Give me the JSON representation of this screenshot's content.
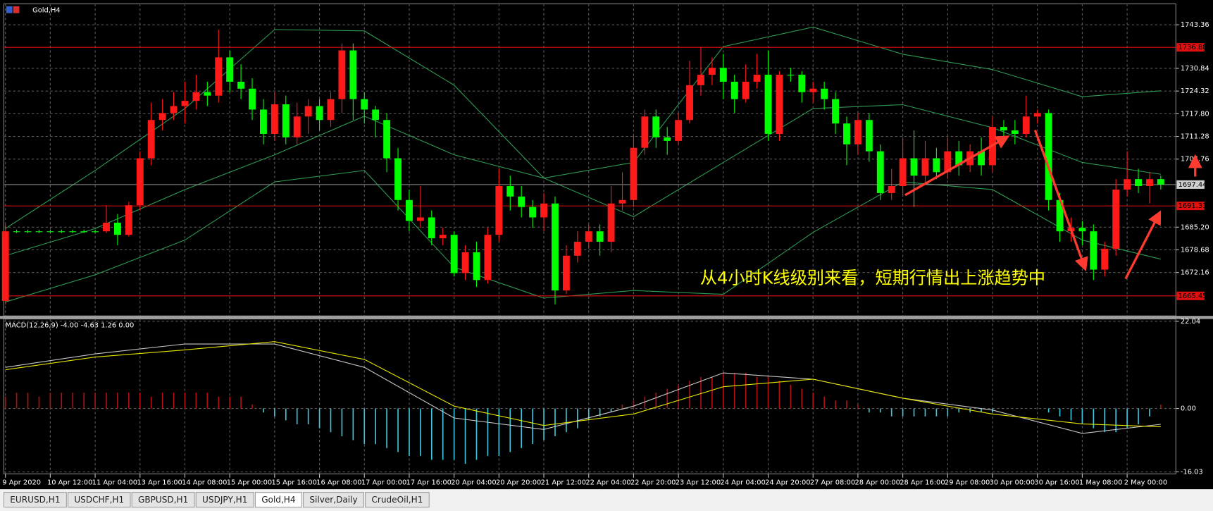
{
  "chart_data": [
    {
      "type": "candlestick",
      "title": "Gold,H4",
      "annotation": "从4小时K线级别来看，短期行情出上涨趋势中",
      "categories": [
        "9 Apr 2020",
        null,
        null,
        null,
        "10 Apr 12:00",
        null,
        null,
        null,
        "11 Apr 04:00",
        null,
        null,
        null,
        "13 Apr 16:00",
        null,
        null,
        null,
        "14 Apr 08:00",
        null,
        null,
        null,
        "15 Apr 00:00",
        null,
        null,
        null,
        "15 Apr 16:00",
        null,
        null,
        null,
        "16 Apr 08:00",
        null,
        null,
        null,
        "17 Apr 00:00",
        null,
        null,
        null,
        "17 Apr 16:00",
        null,
        null,
        null,
        "20 Apr 04:00",
        null,
        null,
        null,
        "20 Apr 20:00",
        null,
        null,
        null,
        "21 Apr 12:00",
        null,
        null,
        null,
        "22 Apr 04:00",
        null,
        null,
        null,
        "22 Apr 20:00",
        null,
        null,
        null,
        "23 Apr 12:00",
        null,
        null,
        null,
        "24 Apr 04:00",
        null,
        null,
        null,
        "24 Apr 20:00",
        null,
        null,
        null,
        "27 Apr 08:00",
        null,
        null,
        null,
        "28 Apr 00:00",
        null,
        null,
        null,
        "28 Apr 16:00",
        null,
        null,
        null,
        "29 Apr 08:00",
        null,
        null,
        null,
        "30 Apr 00:00",
        null,
        null,
        null,
        "30 Apr 16:00",
        null,
        null,
        null,
        "1 May 08:00",
        null,
        null,
        null,
        "2 May 00:00",
        null,
        null,
        null
      ],
      "open": [
        1664,
        1684,
        1684,
        1684,
        1684,
        1684,
        1684,
        1684,
        1684,
        1684,
        1686.5,
        1683,
        1691.5,
        1705,
        1716,
        1718,
        1720,
        1721.5,
        1724,
        1723,
        1734,
        1727,
        1725,
        1719,
        1712,
        1720.5,
        1711,
        1717,
        1720,
        1716,
        1722,
        1736,
        1722,
        1719,
        1716,
        1705,
        1693,
        1687,
        1688,
        1682,
        1683,
        1672,
        1678,
        1670,
        1683,
        1697,
        1694,
        1691,
        1688,
        1692,
        1667,
        1677,
        1681,
        1684,
        1681,
        1692,
        1693,
        1708,
        1717,
        1711,
        1710,
        1716,
        1726,
        1729,
        1731,
        1727,
        1722,
        1727,
        1729,
        1712,
        1729,
        1729,
        1724,
        1725,
        1722,
        1715,
        1709,
        1716,
        1707,
        1695,
        1697,
        1705,
        1700,
        1705,
        1701,
        1707,
        1703,
        1707,
        1703,
        1714,
        1713,
        1712,
        1717,
        1718,
        1693,
        1684,
        1685,
        1684,
        1673,
        1679,
        1696,
        1699,
        1697,
        1699
      ],
      "high": [
        1686,
        1684.5,
        1684.5,
        1684.5,
        1684.5,
        1684.5,
        1684.5,
        1684.5,
        1684.5,
        1691.5,
        1689,
        1692.5,
        1707,
        1721,
        1722,
        1724,
        1727,
        1729,
        1727,
        1742,
        1736,
        1732,
        1728,
        1722,
        1724,
        1723,
        1721,
        1722,
        1722,
        1724,
        1738,
        1738,
        1724,
        1720,
        1718,
        1708,
        1696,
        1697,
        1690,
        1685,
        1684,
        1680,
        1681,
        1685,
        1702,
        1700,
        1697,
        1693,
        1695,
        1694,
        1680,
        1684,
        1686,
        1686,
        1697,
        1701,
        1712,
        1719,
        1719,
        1714,
        1718,
        1733,
        1737,
        1734,
        1735,
        1729,
        1732,
        1735,
        1736,
        1730,
        1731,
        1730,
        1727,
        1727,
        1724,
        1717,
        1718,
        1718,
        1709,
        1702,
        1711,
        1713,
        1710,
        1708,
        1711,
        1710,
        1709,
        1711,
        1717,
        1716,
        1716,
        1723,
        1719,
        1719,
        1695,
        1688,
        1687,
        1686,
        1681,
        1699,
        1707,
        1702,
        1701,
        1700
      ],
      "low": [
        1663,
        1683.5,
        1683.5,
        1683.5,
        1683.5,
        1683.5,
        1683.5,
        1683.5,
        1683.5,
        1683.5,
        1680,
        1682.5,
        1690,
        1703,
        1713,
        1716,
        1715,
        1719,
        1720,
        1721,
        1724,
        1722,
        1716,
        1709,
        1710,
        1709,
        1709,
        1712,
        1713,
        1714,
        1718,
        1716,
        1715,
        1711,
        1701,
        1690,
        1684,
        1685,
        1680,
        1680,
        1671,
        1670,
        1668,
        1669,
        1681,
        1690,
        1688,
        1685,
        1684,
        1663,
        1666,
        1675,
        1679,
        1677,
        1678,
        1690,
        1691,
        1706,
        1708,
        1706,
        1709,
        1715,
        1723,
        1726,
        1722,
        1718,
        1721,
        1725,
        1710,
        1710,
        1727,
        1721,
        1721,
        1719,
        1712,
        1703,
        1706,
        1704,
        1693,
        1693,
        1694,
        1691,
        1698,
        1699,
        1699,
        1700,
        1701,
        1700,
        1701,
        1710,
        1709,
        1711,
        1715,
        1690,
        1681,
        1681,
        1680,
        1670,
        1671,
        1677,
        1694,
        1695,
        1692,
        1696
      ],
      "close": [
        1684,
        1684,
        1684,
        1684,
        1684,
        1684,
        1684,
        1684,
        1684,
        1686.5,
        1683,
        1691.5,
        1705,
        1716,
        1718,
        1720,
        1721.5,
        1724,
        1723,
        1734,
        1727,
        1725,
        1719,
        1712,
        1720.5,
        1711,
        1717,
        1720,
        1716,
        1722,
        1736,
        1722,
        1719,
        1716,
        1705,
        1693,
        1687,
        1688,
        1682,
        1683,
        1672,
        1678,
        1670,
        1683,
        1697,
        1694,
        1691,
        1688,
        1692,
        1667,
        1677,
        1681,
        1684,
        1681,
        1692,
        1693,
        1708,
        1717,
        1711,
        1710,
        1716,
        1726,
        1729,
        1731,
        1727,
        1722,
        1727,
        1729,
        1712,
        1729,
        1729,
        1724,
        1725,
        1722,
        1715,
        1709,
        1716,
        1707,
        1695,
        1697,
        1705,
        1700,
        1705,
        1701,
        1707,
        1703,
        1707,
        1703,
        1714,
        1713,
        1712,
        1717,
        1718,
        1693,
        1684,
        1685,
        1684,
        1673,
        1679,
        1696,
        1699,
        1697,
        1699,
        1697.44
      ],
      "up_color": "#ff1a1a",
      "down_color": "#00ff00",
      "overlays": [
        {
          "color": "#2e9a55",
          "x": [
            0,
            8,
            16,
            24,
            32,
            40,
            48,
            56,
            64,
            72,
            80,
            88,
            96,
            103
          ],
          "values": [
            1684.8,
            1701.5,
            1719.3,
            1742.0,
            1741.6,
            1726.0,
            1699.3,
            1703.8,
            1737.1,
            1742.7,
            1734.9,
            1730.5,
            1722.7,
            1724.4
          ]
        },
        {
          "color": "#2e9a55",
          "x": [
            0,
            8,
            16,
            24,
            32,
            40,
            48,
            56,
            64,
            72,
            80,
            88,
            96,
            103
          ],
          "values": [
            1677.0,
            1684.8,
            1696.0,
            1706.0,
            1717.1,
            1706.0,
            1699.3,
            1688.2,
            1703.8,
            1719.3,
            1720.4,
            1713.8,
            1703.8,
            1700.4
          ]
        },
        {
          "color": "#2e9a55",
          "x": [
            0,
            8,
            16,
            24,
            32,
            40,
            48,
            56,
            64,
            72,
            80,
            88,
            96,
            103
          ],
          "values": [
            1663.7,
            1671.5,
            1681.5,
            1698.2,
            1701.5,
            1673.7,
            1664.8,
            1667.0,
            1665.9,
            1683.7,
            1698.2,
            1696.0,
            1681.5,
            1676.0
          ]
        }
      ],
      "levels": [
        1736.88,
        1691.31,
        1665.45
      ],
      "level_color": "#e01010",
      "last_price": 1697.44,
      "ylim": [
        1659.7,
        1749.37
      ],
      "yticks": [
        1743.36,
        1730.84,
        1724.32,
        {
          "value": 1717.8,
          "label": "1717.80"
        },
        1711.28,
        1704.76,
        {
          "value": 1685.2,
          "label": "1685.20"
        },
        1678.68,
        1672.16
      ],
      "grid": true
    },
    {
      "type": "macd",
      "label": "MACD(12,26,9) -4.00 -4.63 1.26 0.00",
      "values": [
        3,
        4,
        4,
        3,
        4,
        4,
        4,
        4,
        4,
        4,
        4,
        4,
        4,
        3,
        4,
        4,
        4,
        4,
        4,
        3,
        3,
        3,
        1,
        -1,
        -2,
        -3,
        -4,
        -4,
        -5,
        -6,
        -7,
        -8,
        -9,
        -9,
        -10,
        -11,
        -12,
        -12,
        -13,
        -13,
        -13,
        -14,
        -13,
        -12,
        -12,
        -11,
        -10,
        -9,
        -8,
        -7,
        -6,
        -5,
        -3,
        -2,
        -1,
        1,
        2,
        3,
        4,
        5,
        6,
        7,
        8,
        8,
        9,
        9,
        9,
        8,
        8,
        7,
        6,
        5,
        4,
        3,
        2,
        2,
        1,
        -1,
        -1,
        -2,
        -2,
        -2,
        -2,
        -2,
        -2,
        -1,
        -1,
        -1,
        -1,
        0,
        0,
        0,
        0,
        -1,
        -2,
        -3,
        -4,
        -5,
        -6,
        -6,
        -5,
        -4,
        -2,
        1
      ],
      "pos_color": "#b01010",
      "neg_color": "#3ec6dc",
      "lines": [
        {
          "color": "#c8c8c8",
          "x": [
            0,
            8,
            16,
            24,
            32,
            40,
            48,
            56,
            64,
            72,
            80,
            88,
            96,
            103
          ],
          "values": [
            10.4,
            13.8,
            16.3,
            16.3,
            10.4,
            -2.4,
            -5.3,
            0.6,
            9.0,
            7.4,
            2.6,
            -0.4,
            -6.3,
            -4.0
          ]
        },
        {
          "color": "#e6e600",
          "x": [
            0,
            8,
            16,
            24,
            32,
            40,
            48,
            56,
            64,
            72,
            80,
            88,
            96,
            103
          ],
          "values": [
            9.8,
            13.0,
            14.8,
            16.9,
            12.4,
            0.6,
            -4.3,
            -1.4,
            5.5,
            7.4,
            2.6,
            -1.4,
            -3.9,
            -4.63
          ]
        }
      ],
      "ylim": [
        -16.52,
        22.62
      ],
      "yticks": [
        22.04,
        {
          "value": 0,
          "label": "0.00"
        },
        -16.03
      ]
    }
  ],
  "tabs": [
    "EURUSD,H1",
    "USDCHF,H1",
    "GBPUSD,H1",
    "USDJPY,H1",
    "Gold,H4",
    "Silver,Daily",
    "CrudeOil,H1"
  ],
  "active_tab": 4
}
